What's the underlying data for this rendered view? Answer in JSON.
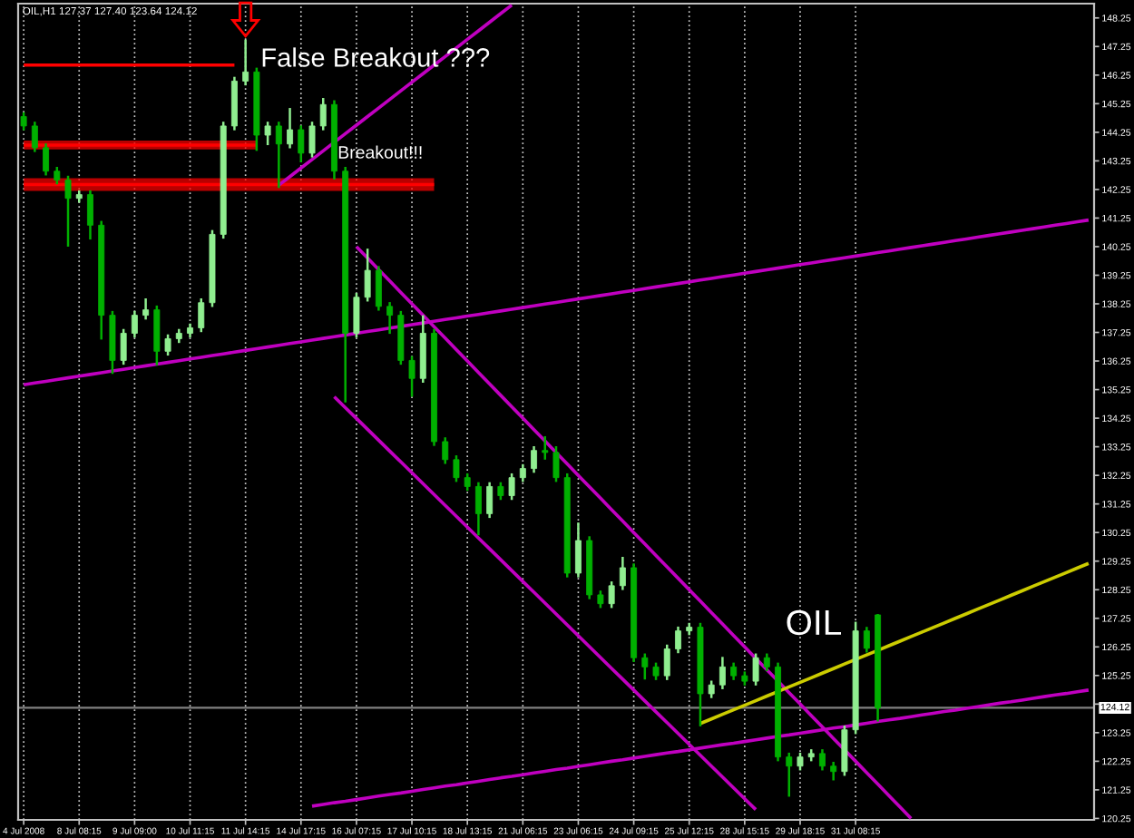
{
  "chart_data": {
    "type": "candlestick",
    "title": "OIL,H1 127.37 127.40 123.64 124.12",
    "categories": [
      "4 Jul 2008",
      null,
      null,
      null,
      null,
      "8 Jul 08:15",
      null,
      null,
      null,
      null,
      "9 Jul 09:00",
      null,
      null,
      null,
      null,
      "10 Jul 11:15",
      null,
      null,
      null,
      null,
      "11 Jul 14:15",
      null,
      null,
      null,
      null,
      "14 Jul 17:15",
      null,
      null,
      null,
      null,
      "16 Jul 07:15",
      null,
      null,
      null,
      null,
      "17 Jul 10:15",
      null,
      null,
      null,
      null,
      "18 Jul 13:15",
      null,
      null,
      null,
      null,
      "21 Jul 06:15",
      null,
      null,
      null,
      null,
      "23 Jul 06:15",
      null,
      null,
      null,
      null,
      "24 Jul 09:15",
      null,
      null,
      null,
      null,
      "25 Jul 12:15",
      null,
      null,
      null,
      null,
      "28 Jul 15:15",
      null,
      null,
      null,
      null,
      "29 Jul 18:15",
      null,
      null,
      null,
      null,
      "31 Jul 08:15",
      null,
      null,
      null,
      null,
      null,
      null,
      null,
      null,
      null,
      null,
      null,
      null,
      null,
      null,
      null,
      null,
      null,
      null,
      null,
      null,
      null
    ],
    "ohlc": [
      [
        144.8,
        144.95,
        144.32,
        144.47
      ],
      [
        144.47,
        144.62,
        143.56,
        143.71
      ],
      [
        143.71,
        143.86,
        142.74,
        142.89
      ],
      [
        142.89,
        143.04,
        142.43,
        142.58
      ],
      [
        142.58,
        142.73,
        140.25,
        141.94
      ],
      [
        141.94,
        142.22,
        141.79,
        142.07
      ],
      [
        142.07,
        142.22,
        140.5,
        141.0
      ],
      [
        141.0,
        141.15,
        137.0,
        137.85
      ],
      [
        137.85,
        138.0,
        135.8,
        136.27
      ],
      [
        136.27,
        137.37,
        136.12,
        137.22
      ],
      [
        137.22,
        138.0,
        137.07,
        137.85
      ],
      [
        137.85,
        138.44,
        137.7,
        138.04
      ],
      [
        138.04,
        138.19,
        136.1,
        136.59
      ],
      [
        136.59,
        137.18,
        136.44,
        137.03
      ],
      [
        137.03,
        137.37,
        136.88,
        137.22
      ],
      [
        137.22,
        137.56,
        137.07,
        137.41
      ],
      [
        137.41,
        138.44,
        137.26,
        138.29
      ],
      [
        138.29,
        140.83,
        138.14,
        140.68
      ],
      [
        140.68,
        144.62,
        140.53,
        144.47
      ],
      [
        144.47,
        146.19,
        144.32,
        146.04
      ],
      [
        146.04,
        147.49,
        145.89,
        146.36
      ],
      [
        146.36,
        146.51,
        143.6,
        144.15
      ],
      [
        144.15,
        144.62,
        143.8,
        144.47
      ],
      [
        144.47,
        144.62,
        142.3,
        143.84
      ],
      [
        143.84,
        145.1,
        143.69,
        144.34
      ],
      [
        144.34,
        144.49,
        143.2,
        143.52
      ],
      [
        143.52,
        144.62,
        143.37,
        144.47
      ],
      [
        144.47,
        145.45,
        144.32,
        145.22
      ],
      [
        145.22,
        145.37,
        142.6,
        142.89
      ],
      [
        142.89,
        143.04,
        134.8,
        137.22
      ],
      [
        137.22,
        138.63,
        137.07,
        138.48
      ],
      [
        138.48,
        140.18,
        138.33,
        139.42
      ],
      [
        139.42,
        139.57,
        138.01,
        138.16
      ],
      [
        138.16,
        138.31,
        137.2,
        137.85
      ],
      [
        137.85,
        138.0,
        136.12,
        136.27
      ],
      [
        136.27,
        136.42,
        135.0,
        135.64
      ],
      [
        135.64,
        137.85,
        135.49,
        137.22
      ],
      [
        137.22,
        137.37,
        133.28,
        133.43
      ],
      [
        133.43,
        133.58,
        132.65,
        132.8
      ],
      [
        132.8,
        132.95,
        132.02,
        132.17
      ],
      [
        132.17,
        132.32,
        131.71,
        131.86
      ],
      [
        131.86,
        132.01,
        130.15,
        130.91
      ],
      [
        130.91,
        132.01,
        130.76,
        131.86
      ],
      [
        131.86,
        132.01,
        131.39,
        131.54
      ],
      [
        131.54,
        132.32,
        131.39,
        132.17
      ],
      [
        132.17,
        132.64,
        132.02,
        132.49
      ],
      [
        132.49,
        133.27,
        132.34,
        133.12
      ],
      [
        133.12,
        133.62,
        132.8,
        133.05
      ],
      [
        133.05,
        133.27,
        132.02,
        132.17
      ],
      [
        132.17,
        132.32,
        128.68,
        128.83
      ],
      [
        128.83,
        130.6,
        128.68,
        129.97
      ],
      [
        129.97,
        130.12,
        127.92,
        128.07
      ],
      [
        128.07,
        128.22,
        127.61,
        127.76
      ],
      [
        127.76,
        128.54,
        127.61,
        128.39
      ],
      [
        128.39,
        129.4,
        128.24,
        129.02
      ],
      [
        129.02,
        129.17,
        125.72,
        125.87
      ],
      [
        125.87,
        126.02,
        125.11,
        125.55
      ],
      [
        125.55,
        125.7,
        125.09,
        125.24
      ],
      [
        125.24,
        126.33,
        125.09,
        126.18
      ],
      [
        126.18,
        126.96,
        126.03,
        126.81
      ],
      [
        126.81,
        127.09,
        126.66,
        126.94
      ],
      [
        126.94,
        127.09,
        123.47,
        124.61
      ],
      [
        124.61,
        125.07,
        124.46,
        124.92
      ],
      [
        124.92,
        125.9,
        124.77,
        125.55
      ],
      [
        125.55,
        125.7,
        125.09,
        125.24
      ],
      [
        125.24,
        125.39,
        124.9,
        125.05
      ],
      [
        125.05,
        126.02,
        124.9,
        125.87
      ],
      [
        125.87,
        126.02,
        125.4,
        125.55
      ],
      [
        125.55,
        125.7,
        122.25,
        122.4
      ],
      [
        122.4,
        122.55,
        121.01,
        122.08
      ],
      [
        122.08,
        122.55,
        121.93,
        122.4
      ],
      [
        122.4,
        122.67,
        122.25,
        122.52
      ],
      [
        122.52,
        122.67,
        121.93,
        122.08
      ],
      [
        122.08,
        122.23,
        121.58,
        121.89
      ],
      [
        121.89,
        123.5,
        121.74,
        123.35
      ],
      [
        123.35,
        127.13,
        123.2,
        126.81
      ],
      [
        126.81,
        126.95,
        126.05,
        126.2
      ],
      [
        127.37,
        127.4,
        123.64,
        124.12
      ],
      null,
      null,
      null,
      null,
      null,
      null,
      null,
      null,
      null,
      null,
      null,
      null,
      null,
      null,
      null,
      null,
      null,
      null,
      null
    ],
    "colors": [
      "#00b000",
      "#00b000",
      "#00b000",
      "#00b000",
      "#00b000",
      "#90ee90",
      "#00b000",
      "#00b000",
      "#00b000",
      "#90ee90",
      "#90ee90",
      "#90ee90",
      "#00b000",
      "#90ee90",
      "#90ee90",
      "#90ee90",
      "#90ee90",
      "#90ee90",
      "#90ee90",
      "#90ee90",
      "#90ee90",
      "#00b000",
      "#90ee90",
      "#00b000",
      "#90ee90",
      "#00b000",
      "#90ee90",
      "#90ee90",
      "#00b000",
      "#00b000",
      "#90ee90",
      "#90ee90",
      "#00b000",
      "#00b000",
      "#00b000",
      "#00b000",
      "#90ee90",
      "#00b000",
      "#00b000",
      "#00b000",
      "#00b000",
      "#00b000",
      "#90ee90",
      "#00b000",
      "#90ee90",
      "#90ee90",
      "#90ee90",
      "#00b000",
      "#00b000",
      "#00b000",
      "#90ee90",
      "#00b000",
      "#00b000",
      "#90ee90",
      "#90ee90",
      "#00b000",
      "#00b000",
      "#00b000",
      "#90ee90",
      "#90ee90",
      "#90ee90",
      "#00b000",
      "#90ee90",
      "#90ee90",
      "#00b000",
      "#00b000",
      "#90ee90",
      "#00b000",
      "#00b000",
      "#00b000",
      "#90ee90",
      "#90ee90",
      "#00b000",
      "#00b000",
      "#90ee90",
      "#90ee90",
      "#00b000",
      "#00b000",
      null,
      null,
      null,
      null,
      null,
      null,
      null,
      null,
      null,
      null,
      null,
      null,
      null,
      null,
      null,
      null,
      null,
      null,
      null
    ],
    "series": [
      {
        "type": "line",
        "color": "#ff0000",
        "values": [
          146.6,
          146.6,
          146.6,
          146.6,
          146.6,
          146.6,
          146.6,
          146.6,
          146.6,
          146.6,
          146.6,
          146.6,
          146.6,
          146.6,
          146.6,
          146.6,
          146.6,
          146.6,
          146.6,
          146.6,
          null,
          null,
          null,
          null,
          null,
          null,
          null,
          null,
          null,
          null,
          null,
          null,
          null,
          null,
          null,
          null,
          null,
          null,
          null,
          null,
          null,
          null,
          null,
          null,
          null,
          null,
          null,
          null,
          null,
          null,
          null,
          null,
          null,
          null,
          null,
          null,
          null,
          null,
          null,
          null,
          null,
          null,
          null,
          null,
          null,
          null,
          null,
          null,
          null,
          null,
          null,
          null,
          null,
          null,
          null,
          null,
          null,
          null,
          null,
          null,
          null,
          null,
          null,
          null,
          null,
          null,
          null,
          null,
          null,
          null,
          null,
          null,
          null,
          null,
          null,
          null,
          null
        ]
      },
      {
        "type": "line",
        "color": "#ff0000",
        "values": [
          143.8,
          143.8,
          143.8,
          143.8,
          143.8,
          143.8,
          143.8,
          143.8,
          143.8,
          143.8,
          143.8,
          143.8,
          143.8,
          143.8,
          143.8,
          143.8,
          143.8,
          143.8,
          143.8,
          143.8,
          143.8,
          143.8,
          null,
          null,
          null,
          null,
          null,
          null,
          null,
          null,
          null,
          null,
          null,
          null,
          null,
          null,
          null,
          null,
          null,
          null,
          null,
          null,
          null,
          null,
          null,
          null,
          null,
          null,
          null,
          null,
          null,
          null,
          null,
          null,
          null,
          null,
          null,
          null,
          null,
          null,
          null,
          null,
          null,
          null,
          null,
          null,
          null,
          null,
          null,
          null,
          null,
          null,
          null,
          null,
          null,
          null,
          null,
          null,
          null,
          null,
          null,
          null,
          null,
          null,
          null,
          null,
          null,
          null,
          null,
          null,
          null,
          null,
          null,
          null,
          null,
          null,
          null
        ],
        "lower": [
          143.65,
          143.65,
          143.65,
          143.65,
          143.65,
          143.65,
          143.65,
          143.65,
          143.65,
          143.65,
          143.65,
          143.65,
          143.65,
          143.65,
          143.65,
          143.65,
          143.65,
          143.65,
          143.65,
          143.65,
          143.65,
          143.65,
          null,
          null,
          null,
          null,
          null,
          null,
          null,
          null,
          null,
          null,
          null,
          null,
          null,
          null,
          null,
          null,
          null,
          null,
          null,
          null,
          null,
          null,
          null,
          null,
          null,
          null,
          null,
          null,
          null,
          null,
          null,
          null,
          null,
          null,
          null,
          null,
          null,
          null,
          null,
          null,
          null,
          null,
          null,
          null,
          null,
          null,
          null,
          null,
          null,
          null,
          null,
          null,
          null,
          null,
          null,
          null,
          null,
          null,
          null,
          null,
          null,
          null,
          null,
          null,
          null,
          null,
          null,
          null,
          null,
          null,
          null,
          null,
          null,
          null,
          null
        ],
        "upper": [
          143.96,
          143.96,
          143.96,
          143.96,
          143.96,
          143.96,
          143.96,
          143.96,
          143.96,
          143.96,
          143.96,
          143.96,
          143.96,
          143.96,
          143.96,
          143.96,
          143.96,
          143.96,
          143.96,
          143.96,
          143.96,
          143.96,
          null,
          null,
          null,
          null,
          null,
          null,
          null,
          null,
          null,
          null,
          null,
          null,
          null,
          null,
          null,
          null,
          null,
          null,
          null,
          null,
          null,
          null,
          null,
          null,
          null,
          null,
          null,
          null,
          null,
          null,
          null,
          null,
          null,
          null,
          null,
          null,
          null,
          null,
          null,
          null,
          null,
          null,
          null,
          null,
          null,
          null,
          null,
          null,
          null,
          null,
          null,
          null,
          null,
          null,
          null,
          null,
          null,
          null,
          null,
          null,
          null,
          null,
          null,
          null,
          null,
          null,
          null,
          null,
          null,
          null,
          null,
          null,
          null,
          null,
          null
        ]
      },
      {
        "type": "line",
        "color": "#ff0000",
        "values": [
          142.42,
          142.42,
          142.42,
          142.42,
          142.42,
          142.42,
          142.42,
          142.42,
          142.42,
          142.42,
          142.42,
          142.42,
          142.42,
          142.42,
          142.42,
          142.42,
          142.42,
          142.42,
          142.42,
          142.42,
          142.42,
          142.42,
          142.42,
          142.42,
          142.42,
          142.42,
          142.42,
          142.42,
          142.42,
          142.42,
          142.42,
          142.42,
          142.42,
          142.42,
          142.42,
          142.42,
          142.42,
          142.42,
          null,
          null,
          null,
          null,
          null,
          null,
          null,
          null,
          null,
          null,
          null,
          null,
          null,
          null,
          null,
          null,
          null,
          null,
          null,
          null,
          null,
          null,
          null,
          null,
          null,
          null,
          null,
          null,
          null,
          null,
          null,
          null,
          null,
          null,
          null,
          null,
          null,
          null,
          null,
          null,
          null,
          null,
          null,
          null,
          null,
          null,
          null,
          null,
          null,
          null,
          null,
          null,
          null,
          null,
          null,
          null,
          null,
          null,
          null
        ],
        "lower": [
          142.2,
          142.2,
          142.2,
          142.2,
          142.2,
          142.2,
          142.2,
          142.2,
          142.2,
          142.2,
          142.2,
          142.2,
          142.2,
          142.2,
          142.2,
          142.2,
          142.2,
          142.2,
          142.2,
          142.2,
          142.2,
          142.2,
          142.2,
          142.2,
          142.2,
          142.2,
          142.2,
          142.2,
          142.2,
          142.2,
          142.2,
          142.2,
          142.2,
          142.2,
          142.2,
          142.2,
          142.2,
          142.2,
          null,
          null,
          null,
          null,
          null,
          null,
          null,
          null,
          null,
          null,
          null,
          null,
          null,
          null,
          null,
          null,
          null,
          null,
          null,
          null,
          null,
          null,
          null,
          null,
          null,
          null,
          null,
          null,
          null,
          null,
          null,
          null,
          null,
          null,
          null,
          null,
          null,
          null,
          null,
          null,
          null,
          null,
          null,
          null,
          null,
          null,
          null,
          null,
          null,
          null,
          null,
          null,
          null,
          null,
          null,
          null,
          null,
          null,
          null
        ],
        "upper": [
          142.64,
          142.64,
          142.64,
          142.64,
          142.64,
          142.64,
          142.64,
          142.64,
          142.64,
          142.64,
          142.64,
          142.64,
          142.64,
          142.64,
          142.64,
          142.64,
          142.64,
          142.64,
          142.64,
          142.64,
          142.64,
          142.64,
          142.64,
          142.64,
          142.64,
          142.64,
          142.64,
          142.64,
          142.64,
          142.64,
          142.64,
          142.64,
          142.64,
          142.64,
          142.64,
          142.64,
          142.64,
          142.64,
          null,
          null,
          null,
          null,
          null,
          null,
          null,
          null,
          null,
          null,
          null,
          null,
          null,
          null,
          null,
          null,
          null,
          null,
          null,
          null,
          null,
          null,
          null,
          null,
          null,
          null,
          null,
          null,
          null,
          null,
          null,
          null,
          null,
          null,
          null,
          null,
          null,
          null,
          null,
          null,
          null,
          null,
          null,
          null,
          null,
          null,
          null,
          null,
          null,
          null,
          null,
          null,
          null,
          null,
          null,
          null,
          null,
          null,
          null
        ]
      },
      {
        "type": "line",
        "color": "#c000c0",
        "values": [
          135.42,
          135.48,
          135.54,
          135.6,
          135.66,
          135.72,
          135.78,
          135.84,
          135.9,
          135.96,
          136.02,
          136.08,
          136.14,
          136.2,
          136.26,
          136.32,
          136.38,
          136.44,
          136.5,
          136.56,
          136.62,
          136.68,
          136.74,
          136.8,
          136.86,
          136.92,
          136.98,
          137.04,
          137.1,
          137.16,
          137.22,
          137.28,
          137.34,
          137.4,
          137.46,
          137.52,
          137.58,
          137.64,
          137.7,
          137.76,
          137.82,
          137.88,
          137.94,
          138.0,
          138.06,
          138.12,
          138.18,
          138.24,
          138.3,
          138.36,
          138.42,
          138.48,
          138.54,
          138.6,
          138.66,
          138.72,
          138.78,
          138.84,
          138.9,
          138.96,
          139.02,
          139.08,
          139.14,
          139.2,
          139.26,
          139.32,
          139.38,
          139.44,
          139.5,
          139.56,
          139.62,
          139.68,
          139.74,
          139.8,
          139.86,
          139.92,
          139.98,
          140.04,
          140.1,
          140.16,
          140.22,
          140.28,
          140.34,
          140.4,
          140.46,
          140.52,
          140.58,
          140.64,
          140.7,
          140.76,
          140.82,
          140.88,
          140.94,
          141.0,
          141.06,
          141.12,
          141.18
        ]
      },
      {
        "type": "line",
        "color": "#c000c0",
        "values": [
          null,
          null,
          null,
          null,
          null,
          null,
          null,
          null,
          null,
          null,
          null,
          null,
          null,
          null,
          null,
          null,
          null,
          null,
          null,
          null,
          null,
          null,
          null,
          142.4,
          142.7,
          143.0,
          143.3,
          143.6,
          143.9,
          144.2,
          144.5,
          144.8,
          145.1,
          145.4,
          145.7,
          146.0,
          146.3,
          146.6,
          146.9,
          147.2,
          147.5,
          147.8,
          148.1,
          148.4,
          148.7,
          null,
          null,
          null,
          null,
          null,
          null,
          null,
          null,
          null,
          null,
          null,
          null,
          null,
          null,
          null,
          null,
          null,
          null,
          null,
          null,
          null,
          null,
          null,
          null,
          null,
          null,
          null,
          null,
          null,
          null,
          null,
          null,
          null,
          null,
          null,
          null,
          null,
          null,
          null,
          null,
          null,
          null,
          null,
          null,
          null,
          null,
          null,
          null,
          null,
          null,
          null,
          null
        ]
      },
      {
        "type": "line",
        "color": "#c000c0",
        "values": [
          null,
          null,
          null,
          null,
          null,
          null,
          null,
          null,
          null,
          null,
          null,
          null,
          null,
          null,
          null,
          null,
          null,
          null,
          null,
          null,
          null,
          null,
          null,
          null,
          null,
          null,
          null,
          null,
          null,
          null,
          140.25,
          139.85,
          139.45,
          139.05,
          138.65,
          138.25,
          137.85,
          137.45,
          137.05,
          136.65,
          136.25,
          135.85,
          135.45,
          135.05,
          134.65,
          134.25,
          133.85,
          133.45,
          133.05,
          132.65,
          132.25,
          131.85,
          131.45,
          131.05,
          130.65,
          130.25,
          129.85,
          129.45,
          129.05,
          128.65,
          128.25,
          127.85,
          127.45,
          127.05,
          126.65,
          126.25,
          125.85,
          125.45,
          125.05,
          124.65,
          124.25,
          123.85,
          123.45,
          123.05,
          122.65,
          122.25,
          121.85,
          121.45,
          121.05,
          120.65,
          120.25,
          null,
          null,
          null,
          null,
          null,
          null,
          null,
          null,
          null,
          null,
          null,
          null,
          null,
          null,
          null,
          null
        ]
      },
      {
        "type": "line",
        "color": "#c000c0",
        "values": [
          null,
          null,
          null,
          null,
          null,
          null,
          null,
          null,
          null,
          null,
          null,
          null,
          null,
          null,
          null,
          null,
          null,
          null,
          null,
          null,
          null,
          null,
          null,
          null,
          null,
          null,
          null,
          null,
          135.0,
          134.62,
          134.24,
          133.86,
          133.48,
          133.1,
          132.72,
          132.34,
          131.96,
          131.58,
          131.2,
          130.82,
          130.44,
          130.06,
          129.68,
          129.3,
          128.92,
          128.54,
          128.16,
          127.78,
          127.4,
          127.02,
          126.64,
          126.26,
          125.88,
          125.5,
          125.12,
          124.74,
          124.36,
          123.98,
          123.6,
          123.22,
          122.84,
          122.46,
          122.08,
          121.7,
          121.32,
          120.94,
          120.56,
          null,
          null,
          null,
          null,
          null,
          null,
          null,
          null,
          null,
          null,
          null,
          null,
          null,
          null,
          null,
          null,
          null,
          null,
          null,
          null,
          null,
          null,
          null,
          null,
          null,
          null,
          null,
          null,
          null,
          null
        ]
      },
      {
        "type": "line",
        "color": "#c000c0",
        "values": [
          null,
          null,
          null,
          null,
          null,
          null,
          null,
          null,
          null,
          null,
          null,
          null,
          null,
          null,
          null,
          null,
          null,
          null,
          null,
          null,
          null,
          null,
          null,
          null,
          null,
          null,
          120.68,
          120.74,
          120.8,
          120.85,
          120.91,
          120.97,
          121.03,
          121.09,
          121.14,
          121.2,
          121.26,
          121.32,
          121.38,
          121.43,
          121.49,
          121.55,
          121.61,
          121.67,
          121.72,
          121.78,
          121.84,
          121.9,
          121.96,
          122.01,
          122.07,
          122.13,
          122.19,
          122.25,
          122.3,
          122.36,
          122.42,
          122.48,
          122.54,
          122.59,
          122.65,
          122.71,
          122.77,
          122.83,
          122.88,
          122.94,
          123.0,
          123.06,
          123.12,
          123.17,
          123.23,
          123.29,
          123.35,
          123.41,
          123.46,
          123.52,
          123.58,
          123.64,
          123.7,
          123.75,
          123.81,
          123.87,
          123.93,
          123.99,
          124.04,
          124.1,
          124.16,
          124.22,
          124.28,
          124.33,
          124.39,
          124.45,
          124.51,
          124.57,
          124.62,
          124.68,
          124.74
        ]
      },
      {
        "type": "line",
        "color": "#cccc00",
        "values": [
          null,
          null,
          null,
          null,
          null,
          null,
          null,
          null,
          null,
          null,
          null,
          null,
          null,
          null,
          null,
          null,
          null,
          null,
          null,
          null,
          null,
          null,
          null,
          null,
          null,
          null,
          null,
          null,
          null,
          null,
          null,
          null,
          null,
          null,
          null,
          null,
          null,
          null,
          null,
          null,
          null,
          null,
          null,
          null,
          null,
          null,
          null,
          null,
          null,
          null,
          null,
          null,
          null,
          null,
          null,
          null,
          null,
          null,
          null,
          null,
          null,
          123.57,
          123.73,
          123.89,
          124.05,
          124.21,
          124.37,
          124.53,
          124.69,
          124.85,
          125.01,
          125.17,
          125.33,
          125.49,
          125.65,
          125.81,
          125.97,
          126.13,
          126.29,
          126.45,
          126.61,
          126.77,
          126.93,
          127.09,
          127.25,
          127.41,
          127.57,
          127.73,
          127.89,
          128.05,
          128.21,
          128.37,
          128.53,
          128.69,
          128.85,
          129.01,
          129.17
        ]
      }
    ],
    "annotations": [
      {
        "text": "False Breakout ???",
        "x": "11 Jul 14:15",
        "y": 147.49
      },
      "Breakout!!!",
      "OIL"
    ],
    "ref_lines": [
      {
        "axis": "y",
        "value": 124.12,
        "label": "124.12",
        "color": "#808080"
      }
    ],
    "ylim": [
      120.2,
      148.75
    ],
    "yticks": [
      120.25,
      121.25,
      122.25,
      123.25,
      {
        "value": 124.25,
        "label": null
      },
      125.25,
      126.25,
      127.25,
      128.25,
      129.25,
      130.25,
      131.25,
      132.25,
      133.25,
      134.25,
      135.25,
      136.25,
      137.25,
      138.25,
      139.25,
      140.25,
      141.25,
      142.25,
      143.25,
      144.25,
      145.25,
      146.25,
      147.25,
      148.25
    ],
    "grid": "x"
  }
}
